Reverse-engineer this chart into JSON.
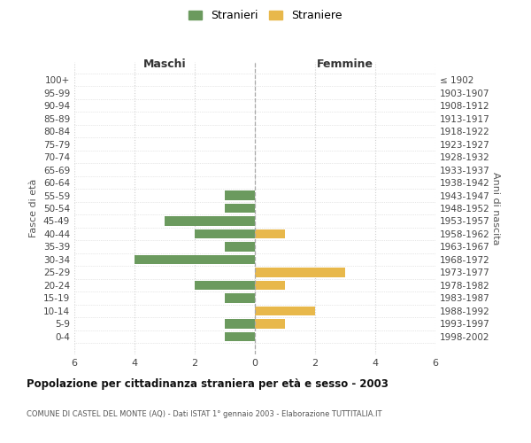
{
  "age_groups": [
    "100+",
    "95-99",
    "90-94",
    "85-89",
    "80-84",
    "75-79",
    "70-74",
    "65-69",
    "60-64",
    "55-59",
    "50-54",
    "45-49",
    "40-44",
    "35-39",
    "30-34",
    "25-29",
    "20-24",
    "15-19",
    "10-14",
    "5-9",
    "0-4"
  ],
  "birth_years": [
    "≤ 1902",
    "1903-1907",
    "1908-1912",
    "1913-1917",
    "1918-1922",
    "1923-1927",
    "1928-1932",
    "1933-1937",
    "1938-1942",
    "1943-1947",
    "1948-1952",
    "1953-1957",
    "1958-1962",
    "1963-1967",
    "1968-1972",
    "1973-1977",
    "1978-1982",
    "1983-1987",
    "1988-1992",
    "1993-1997",
    "1998-2002"
  ],
  "maschi": [
    0,
    0,
    0,
    0,
    0,
    0,
    0,
    0,
    0,
    1,
    1,
    3,
    2,
    1,
    4,
    0,
    2,
    1,
    0,
    1,
    1
  ],
  "femmine": [
    0,
    0,
    0,
    0,
    0,
    0,
    0,
    0,
    0,
    0,
    0,
    0,
    1,
    0,
    0,
    3,
    1,
    0,
    2,
    1,
    0
  ],
  "maschi_color": "#6b9a5e",
  "femmine_color": "#e8b84b",
  "title": "Popolazione per cittadinanza straniera per età e sesso - 2003",
  "subtitle": "COMUNE DI CASTEL DEL MONTE (AQ) - Dati ISTAT 1° gennaio 2003 - Elaborazione TUTTITALIA.IT",
  "xlabel_left": "Maschi",
  "xlabel_right": "Femmine",
  "ylabel_left": "Fasce di età",
  "ylabel_right": "Anni di nascita",
  "legend_stranieri": "Stranieri",
  "legend_straniere": "Straniere",
  "xlim": 6,
  "background_color": "#ffffff",
  "grid_color": "#d0d0d0"
}
